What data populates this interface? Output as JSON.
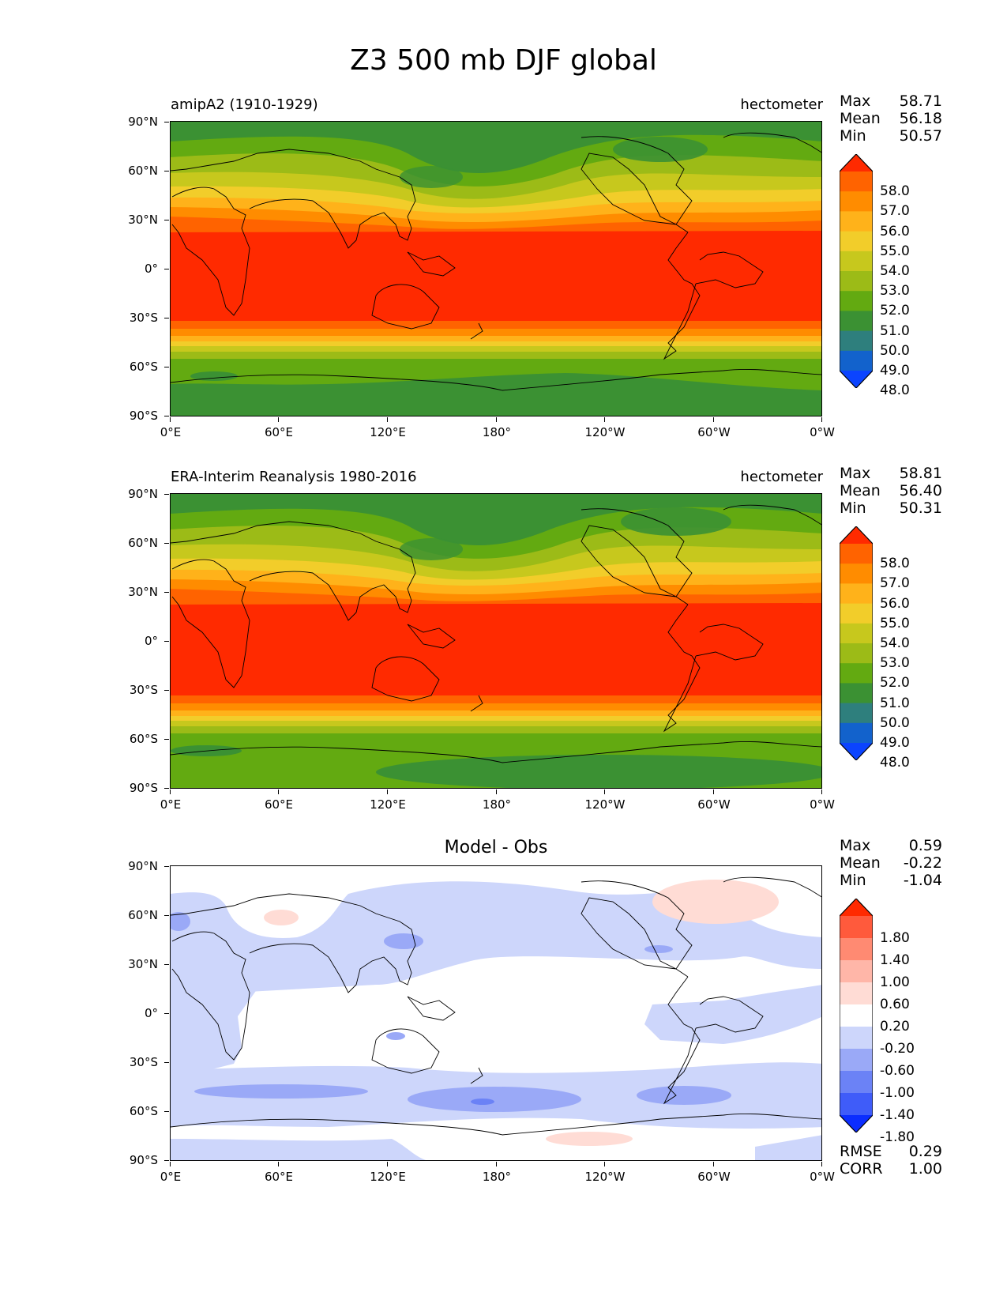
{
  "title": "Z3 500 mb DJF global",
  "axes": {
    "yticks": [
      "90°N",
      "60°N",
      "30°N",
      "0°",
      "30°S",
      "60°S",
      "90°S"
    ],
    "xticks": [
      "0°E",
      "60°E",
      "120°E",
      "180°",
      "120°W",
      "60°W",
      "0°W"
    ]
  },
  "panels": [
    {
      "subtitle": "amipA2 (1910-1929)",
      "units": "hectometer",
      "stats": {
        "max_label": "Max",
        "max": "58.71",
        "mean_label": "Mean",
        "mean": "56.18",
        "min_label": "Min",
        "min": "50.57"
      },
      "colorbar": {
        "labels": [
          "58.0",
          "57.0",
          "56.0",
          "55.0",
          "54.0",
          "53.0",
          "52.0",
          "51.0",
          "50.0",
          "49.0",
          "48.0"
        ],
        "colors": [
          "#ff2a00",
          "#ff6300",
          "#ff8c00",
          "#ffb21a",
          "#f2cd2a",
          "#c7c81d",
          "#9cbb17",
          "#63aa11",
          "#3b9133",
          "#2e7f7d",
          "#1262cc",
          "#0b44ff"
        ]
      }
    },
    {
      "subtitle": "ERA-Interim Reanalysis 1980-2016",
      "units": "hectometer",
      "stats": {
        "max_label": "Max",
        "max": "58.81",
        "mean_label": "Mean",
        "mean": "56.40",
        "min_label": "Min",
        "min": "50.31"
      },
      "colorbar": {
        "labels": [
          "58.0",
          "57.0",
          "56.0",
          "55.0",
          "54.0",
          "53.0",
          "52.0",
          "51.0",
          "50.0",
          "49.0",
          "48.0"
        ],
        "colors": [
          "#ff2a00",
          "#ff6300",
          "#ff8c00",
          "#ffb21a",
          "#f2cd2a",
          "#c7c81d",
          "#9cbb17",
          "#63aa11",
          "#3b9133",
          "#2e7f7d",
          "#1262cc",
          "#0b44ff"
        ]
      }
    },
    {
      "title": "Model - Obs",
      "stats": {
        "max_label": "Max",
        "max": "0.59",
        "mean_label": "Mean",
        "mean": "-0.22",
        "min_label": "Min",
        "min": "-1.04"
      },
      "colorbar": {
        "labels": [
          "1.80",
          "1.40",
          "1.00",
          "0.60",
          "0.20",
          "-0.20",
          "-0.60",
          "-1.00",
          "-1.40",
          "-1.80"
        ],
        "colors": [
          "#ff2a00",
          "#ff5a3c",
          "#ff8a72",
          "#ffb6a8",
          "#ffdcd5",
          "#ffffff",
          "#cdd6fb",
          "#9aa9f7",
          "#6b82f6",
          "#3f5cf9",
          "#0b2dff"
        ]
      },
      "metrics": {
        "rmse_label": "RMSE",
        "rmse": "0.29",
        "corr_label": "CORR",
        "corr": "1.00"
      }
    }
  ]
}
